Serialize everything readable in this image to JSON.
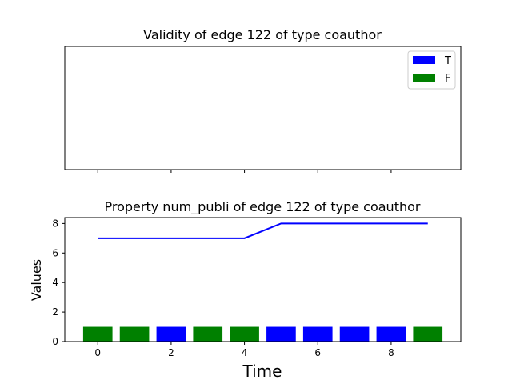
{
  "chart_data": [
    {
      "type": "bar",
      "title": "Validity of edge 122 of type coauthor",
      "xlabel": "",
      "ylabel": "",
      "x": [],
      "series": [],
      "legend": {
        "placement": "top-right",
        "entries": [
          {
            "label": "T",
            "color": "#0000ff"
          },
          {
            "label": "F",
            "color": "#008000"
          }
        ]
      },
      "xlim": [
        -0.9,
        9.9
      ],
      "grid": false
    },
    {
      "type": "line+bar",
      "title": "Property num_publi of edge 122 of type coauthor",
      "xlabel": "Time",
      "ylabel": "Values",
      "xlim": [
        -0.9,
        9.9
      ],
      "ylim": [
        0,
        8.4
      ],
      "xticks": [
        0,
        2,
        4,
        6,
        8
      ],
      "yticks": [
        0,
        2,
        4,
        6,
        8
      ],
      "grid": false,
      "line": {
        "color": "#0000ff",
        "x": [
          0,
          1,
          2,
          3,
          4,
          5,
          6,
          7,
          8,
          9
        ],
        "y": [
          7,
          7,
          7,
          7,
          7,
          8,
          8,
          8,
          8,
          8
        ]
      },
      "bars": {
        "x": [
          0,
          1,
          2,
          3,
          4,
          5,
          6,
          7,
          8,
          9
        ],
        "values": [
          1,
          1,
          1,
          1,
          1,
          1,
          1,
          1,
          1,
          1
        ],
        "validity": [
          "F",
          "F",
          "T",
          "F",
          "F",
          "T",
          "T",
          "T",
          "T",
          "F"
        ],
        "colors": {
          "T": "#0000ff",
          "F": "#008000"
        }
      }
    }
  ]
}
